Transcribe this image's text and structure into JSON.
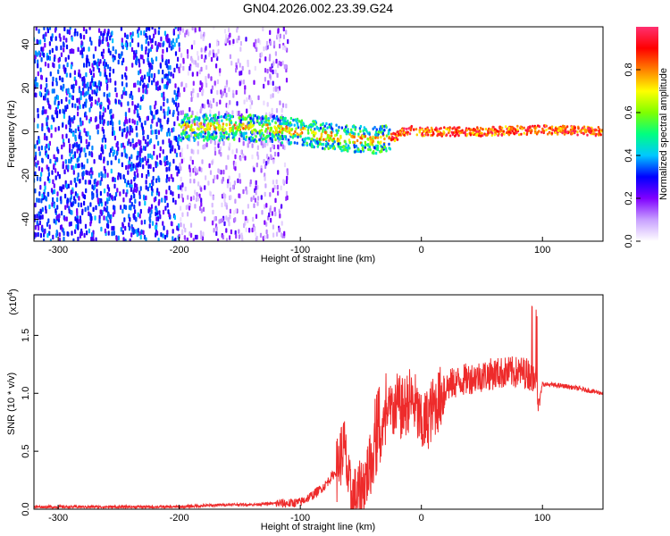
{
  "title": "GN04.2026.002.23.39.G24",
  "chart_data": [
    {
      "type": "heatmap",
      "xlabel": "Height of straight line (km)",
      "ylabel": "Frequency (Hz)",
      "xlim": [
        -320,
        150
      ],
      "ylim": [
        -50,
        48
      ],
      "x_ticks": [
        "-300",
        "-200",
        "-100",
        "0",
        "100"
      ],
      "y_ticks": [
        "-40",
        "-20",
        "0",
        "20",
        "40"
      ],
      "colorbar": {
        "label": "Normalized spectral amplitude",
        "range": [
          0,
          1
        ],
        "ticks": [
          "0.0",
          "0.2",
          "0.4",
          "0.6",
          "0.8"
        ],
        "colors": [
          "#ffffff",
          "#c8a0ff",
          "#8000ff",
          "#0000ff",
          "#00c8ff",
          "#00ff80",
          "#80ff00",
          "#ffff00",
          "#ff8000",
          "#ff0000",
          "#ff3070"
        ]
      },
      "regions": [
        {
          "x": [
            -320,
            -200
          ],
          "f": [
            -50,
            48
          ],
          "amplitude": [
            0.2,
            0.4
          ],
          "pattern": "dense noise"
        },
        {
          "x": [
            -200,
            -110
          ],
          "f": [
            -50,
            48
          ],
          "amplitude": [
            0.05,
            0.25
          ],
          "pattern": "sparse noise"
        },
        {
          "x": [
            -200,
            -25
          ],
          "f": [
            -6,
            6
          ],
          "amplitude": [
            0.3,
            0.6
          ],
          "pattern": "signal band"
        },
        {
          "x": [
            -25,
            150
          ],
          "f": [
            -2,
            2
          ],
          "amplitude": [
            0.7,
            1.0
          ],
          "pattern": "carrier line"
        }
      ],
      "trend": [
        {
          "x": -200,
          "f": 2
        },
        {
          "x": -150,
          "f": 2
        },
        {
          "x": -120,
          "f": 1
        },
        {
          "x": -100,
          "f": 0
        },
        {
          "x": -80,
          "f": -2
        },
        {
          "x": -60,
          "f": -3
        },
        {
          "x": -40,
          "f": -4
        },
        {
          "x": -25,
          "f": -3
        },
        {
          "x": -10,
          "f": 1
        },
        {
          "x": 0,
          "f": 0
        },
        {
          "x": 50,
          "f": 0
        },
        {
          "x": 100,
          "f": 1
        },
        {
          "x": 150,
          "f": 0
        }
      ]
    },
    {
      "type": "line",
      "xlabel": "Height of straight line (km)",
      "ylabel": "SNR (10 * v/v)",
      "y_multiplier": "(x10",
      "y_multiplier_exp": "4",
      "y_multiplier_close": ")",
      "xlim": [
        -320,
        150
      ],
      "ylim": [
        0,
        1.85
      ],
      "x_ticks": [
        "-300",
        "-200",
        "-100",
        "0",
        "100"
      ],
      "y_ticks": [
        "0.0",
        "0.5",
        "1.0",
        "1.5"
      ],
      "color": "#ee2b2b",
      "series": [
        {
          "points": [
            [
              -320,
              0.02
            ],
            [
              -300,
              0.02
            ],
            [
              -280,
              0.02
            ],
            [
              -260,
              0.02
            ],
            [
              -240,
              0.02
            ],
            [
              -220,
              0.02
            ],
            [
              -200,
              0.02
            ],
            [
              -180,
              0.03
            ],
            [
              -160,
              0.04
            ],
            [
              -140,
              0.04
            ],
            [
              -120,
              0.05
            ],
            [
              -110,
              0.05
            ],
            [
              -100,
              0.06
            ],
            [
              -95,
              0.09
            ],
            [
              -90,
              0.12
            ],
            [
              -85,
              0.16
            ],
            [
              -80,
              0.2
            ],
            [
              -75,
              0.27
            ],
            [
              -70,
              0.33
            ],
            [
              -67,
              0.45
            ],
            [
              -64,
              0.55
            ],
            [
              -62,
              0.4
            ],
            [
              -60,
              0.2
            ],
            [
              -58,
              0.12
            ],
            [
              -55,
              0.1
            ],
            [
              -50,
              0.15
            ],
            [
              -45,
              0.3
            ],
            [
              -40,
              0.45
            ],
            [
              -35,
              0.6
            ],
            [
              -30,
              0.7
            ],
            [
              -25,
              0.85
            ],
            [
              -20,
              0.9
            ],
            [
              -15,
              0.85
            ],
            [
              -10,
              0.95
            ],
            [
              -5,
              0.9
            ],
            [
              0,
              0.7
            ],
            [
              5,
              0.78
            ],
            [
              10,
              0.88
            ],
            [
              15,
              0.95
            ],
            [
              20,
              1.05
            ],
            [
              25,
              1.08
            ],
            [
              30,
              1.1
            ],
            [
              40,
              1.13
            ],
            [
              50,
              1.15
            ],
            [
              60,
              1.17
            ],
            [
              70,
              1.18
            ],
            [
              80,
              1.18
            ],
            [
              85,
              1.18
            ],
            [
              90,
              1.16
            ],
            [
              95,
              1.12
            ],
            [
              97,
              0.9
            ],
            [
              100,
              1.08
            ],
            [
              110,
              1.07
            ],
            [
              120,
              1.06
            ],
            [
              130,
              1.04
            ],
            [
              140,
              1.02
            ],
            [
              150,
              1.0
            ]
          ]
        }
      ]
    }
  ]
}
